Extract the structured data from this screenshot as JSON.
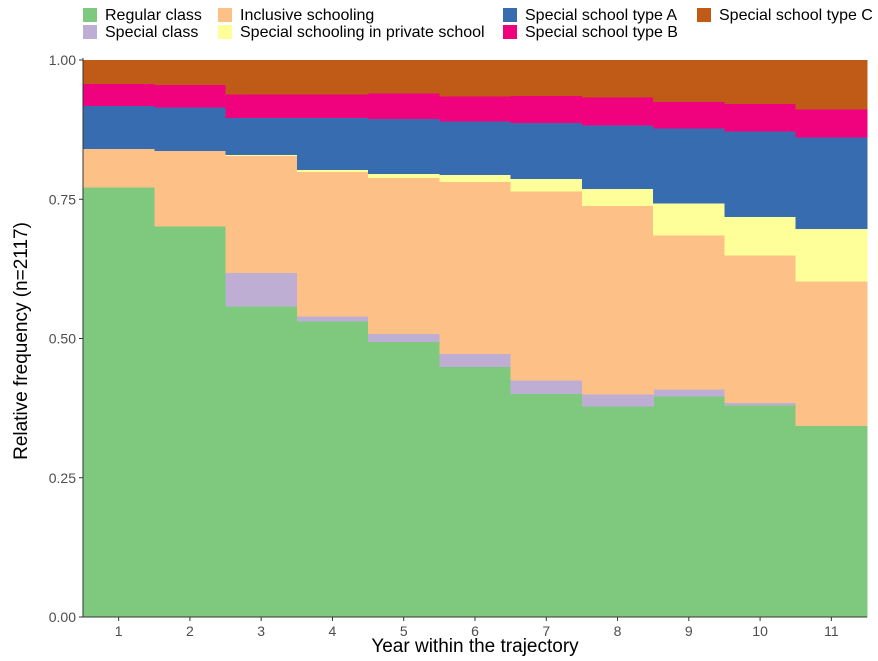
{
  "chart_data": {
    "type": "area",
    "subtype": "stacked-step",
    "xlabel": "Year within the trajectory",
    "ylabel": "Relative frequency (n=2117)",
    "ylim": [
      0,
      1
    ],
    "xlim": [
      0.5,
      11.5
    ],
    "x": [
      1,
      2,
      3,
      4,
      5,
      6,
      7,
      8,
      9,
      10,
      11
    ],
    "x_tick_labels": [
      "1",
      "2",
      "3",
      "4",
      "5",
      "6",
      "7",
      "8",
      "9",
      "10",
      "11"
    ],
    "y_ticks": [
      0,
      0.25,
      0.5,
      0.75,
      1.0
    ],
    "y_tick_labels": [
      "0.00",
      "0.25",
      "0.50",
      "0.75",
      "1.00"
    ],
    "grid": "minor horizontal gridlines (very faint)",
    "legend_position": "top",
    "series": [
      {
        "name": "Regular class",
        "color": "#7fc97f",
        "values": [
          0.772,
          0.702,
          0.558,
          0.531,
          0.494,
          0.45,
          0.401,
          0.379,
          0.397,
          0.38,
          0.344
        ]
      },
      {
        "name": "Special class",
        "color": "#beaed4",
        "values": [
          0.0,
          0.0,
          0.06,
          0.009,
          0.015,
          0.023,
          0.024,
          0.021,
          0.012,
          0.005,
          0.0
        ]
      },
      {
        "name": "Inclusive schooling",
        "color": "#fdc086",
        "values": [
          0.069,
          0.135,
          0.21,
          0.26,
          0.28,
          0.309,
          0.34,
          0.339,
          0.277,
          0.265,
          0.259
        ]
      },
      {
        "name": "Special schooling in private school",
        "color": "#ffff99",
        "values": [
          0.0,
          0.0,
          0.002,
          0.003,
          0.007,
          0.012,
          0.022,
          0.03,
          0.057,
          0.069,
          0.094
        ]
      },
      {
        "name": "Special school type A",
        "color": "#386cb0",
        "values": [
          0.077,
          0.078,
          0.067,
          0.094,
          0.099,
          0.096,
          0.101,
          0.114,
          0.135,
          0.153,
          0.165
        ]
      },
      {
        "name": "Special school type B",
        "color": "#f0027f",
        "values": [
          0.04,
          0.041,
          0.042,
          0.042,
          0.046,
          0.045,
          0.048,
          0.05,
          0.047,
          0.05,
          0.05
        ]
      },
      {
        "name": "Special school type C",
        "color": "#bf5b17",
        "values": [
          0.042,
          0.044,
          0.061,
          0.061,
          0.059,
          0.065,
          0.064,
          0.067,
          0.075,
          0.078,
          0.088
        ]
      }
    ],
    "legend_order": [
      "Regular class",
      "Special class",
      "Inclusive schooling",
      "Special schooling in private school",
      "Special school type A",
      "Special school type B",
      "Special school type C"
    ]
  }
}
